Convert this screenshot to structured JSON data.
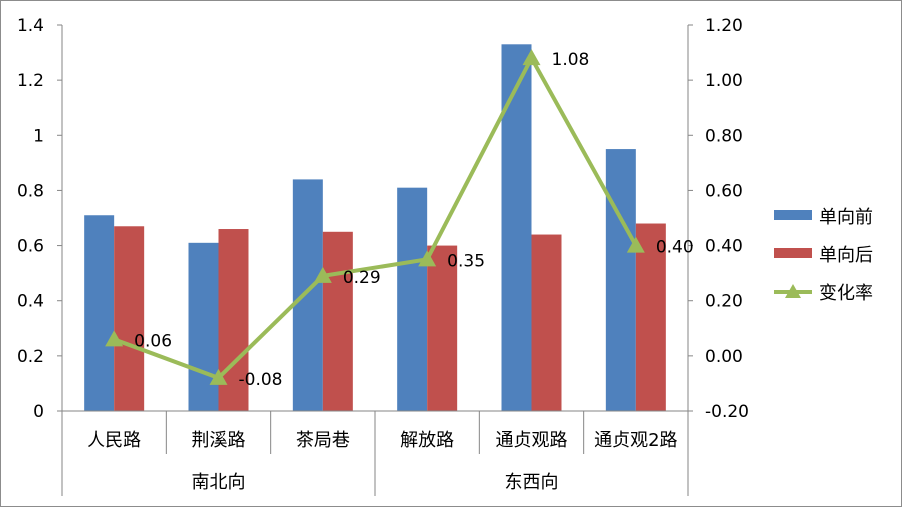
{
  "chart_data": {
    "type": "bar",
    "categories": [
      "人民路",
      "荆溪路",
      "茶局巷",
      "解放路",
      "通贞观路",
      "通贞观2路"
    ],
    "groups": [
      {
        "label": "南北向",
        "count": 3
      },
      {
        "label": "东西向",
        "count": 3
      }
    ],
    "series": [
      {
        "name": "单向前",
        "kind": "bar",
        "axis": "left",
        "color": "#4f81bd",
        "values": [
          0.71,
          0.61,
          0.84,
          0.81,
          1.33,
          0.95
        ]
      },
      {
        "name": "单向后",
        "kind": "bar",
        "axis": "left",
        "color": "#c0504d",
        "values": [
          0.67,
          0.66,
          0.65,
          0.6,
          0.64,
          0.68
        ]
      },
      {
        "name": "变化率",
        "kind": "line",
        "axis": "right",
        "color": "#9bbb59",
        "marker": "triangle",
        "values": [
          0.06,
          -0.08,
          0.29,
          0.35,
          1.08,
          0.4
        ],
        "labels": [
          "0.06",
          "-0.08",
          "0.29",
          "0.35",
          "1.08",
          "0.40"
        ]
      }
    ],
    "y_left": {
      "ylim": [
        0,
        1.4
      ],
      "ticks": [
        "0",
        "0.2",
        "0.4",
        "0.6",
        "0.8",
        "1",
        "1.2",
        "1.4"
      ]
    },
    "y_right": {
      "ylim": [
        -0.2,
        1.2
      ],
      "ticks": [
        "-0.20",
        "0.00",
        "0.20",
        "0.40",
        "0.60",
        "0.80",
        "1.00",
        "1.20"
      ]
    },
    "legend": "right",
    "grid": false
  }
}
